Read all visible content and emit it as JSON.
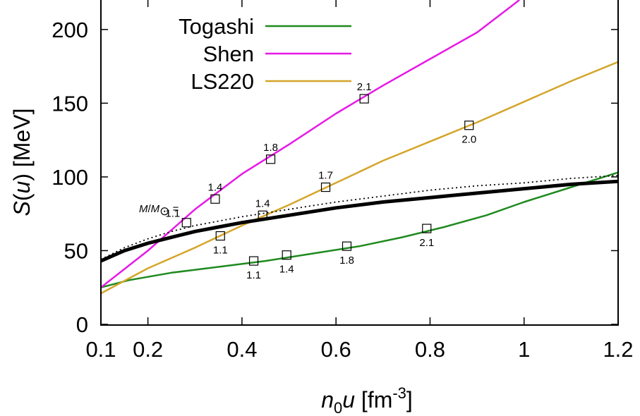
{
  "chart_data": {
    "type": "line",
    "xlabel": "n0u [fm-3]",
    "ylabel": "S(u) [MeV]",
    "xlim": [
      0.1,
      1.2
    ],
    "ylim": [
      0,
      220
    ],
    "x_ticks": [
      {
        "value": 0.1,
        "label": "0.1"
      },
      {
        "value": 0.2,
        "label": "0.2"
      },
      {
        "value": 0.4,
        "label": "0.4"
      },
      {
        "value": 0.6,
        "label": "0.6"
      },
      {
        "value": 0.8,
        "label": "0.8"
      },
      {
        "value": 1.0,
        "label": "1"
      },
      {
        "value": 1.2,
        "label": "1.2"
      }
    ],
    "y_ticks": [
      {
        "value": 0,
        "label": "0"
      },
      {
        "value": 50,
        "label": "50"
      },
      {
        "value": 100,
        "label": "100"
      },
      {
        "value": 150,
        "label": "150"
      },
      {
        "value": 200,
        "label": "200"
      }
    ],
    "legend_position": "top-left",
    "series": [
      {
        "name": "Togashi",
        "color": "#1f8a1f",
        "x": [
          0.1,
          0.16,
          0.25,
          0.35,
          0.45,
          0.55,
          0.65,
          0.74,
          0.83,
          0.92,
          1.0,
          1.1,
          1.2
        ],
        "y": [
          25,
          30,
          35,
          39,
          43,
          48,
          53,
          59,
          66,
          74,
          83,
          93,
          103
        ]
      },
      {
        "name": "Shen",
        "color": "#e619e6",
        "x": [
          0.1,
          0.2,
          0.3,
          0.4,
          0.5,
          0.6,
          0.7,
          0.8,
          0.9,
          0.99
        ],
        "y": [
          25,
          50,
          78,
          102,
          122,
          143,
          162,
          180,
          198,
          220
        ]
      },
      {
        "name": "LS220",
        "color": "#d4a52a",
        "x": [
          0.1,
          0.2,
          0.3,
          0.4,
          0.5,
          0.6,
          0.7,
          0.8,
          0.9,
          1.0,
          1.1,
          1.2
        ],
        "y": [
          21,
          38,
          52,
          67,
          81,
          96,
          111,
          124,
          137,
          151,
          165,
          178
        ]
      },
      {
        "name": "",
        "color": "#000000",
        "style": "solid-thick",
        "x": [
          0.1,
          0.15,
          0.2,
          0.25,
          0.3,
          0.35,
          0.4,
          0.5,
          0.6,
          0.7,
          0.8,
          0.9,
          1.0,
          1.1,
          1.2
        ],
        "y": [
          43,
          50,
          55,
          59,
          63,
          66,
          69,
          74,
          79,
          83,
          86,
          89,
          92,
          95,
          97
        ]
      },
      {
        "name": "",
        "color": "#000000",
        "style": "dotted",
        "x": [
          0.1,
          0.15,
          0.2,
          0.25,
          0.3,
          0.35,
          0.4,
          0.5,
          0.6,
          0.7,
          0.8,
          0.9,
          1.0,
          1.1,
          1.2
        ],
        "y": [
          44,
          52,
          58,
          63,
          67,
          70,
          73,
          78,
          83,
          87,
          91,
          94,
          96,
          99,
          101
        ]
      }
    ],
    "mass_markers": [
      {
        "series": "Togashi",
        "x": 0.425,
        "y": 43,
        "label": "1.1",
        "label_pos": "below"
      },
      {
        "series": "Togashi",
        "x": 0.495,
        "y": 47,
        "label": "1.4",
        "label_pos": "below"
      },
      {
        "series": "Togashi",
        "x": 0.623,
        "y": 53,
        "label": "1.8",
        "label_pos": "below"
      },
      {
        "series": "Togashi",
        "x": 0.793,
        "y": 65,
        "label": "2.1",
        "label_pos": "below"
      },
      {
        "series": "Shen",
        "x": 0.282,
        "y": 69,
        "label": "1.1",
        "label_pos": "left"
      },
      {
        "series": "Shen",
        "x": 0.343,
        "y": 85,
        "label": "1.4",
        "label_pos": "above"
      },
      {
        "series": "Shen",
        "x": 0.461,
        "y": 112,
        "label": "1.8",
        "label_pos": "above"
      },
      {
        "series": "Shen",
        "x": 0.66,
        "y": 153,
        "label": "2.1",
        "label_pos": "above"
      },
      {
        "series": "LS220",
        "x": 0.354,
        "y": 60,
        "label": "1.1",
        "label_pos": "below"
      },
      {
        "series": "LS220",
        "x": 0.444,
        "y": 74,
        "label": "1.4",
        "label_pos": "above"
      },
      {
        "series": "LS220",
        "x": 0.578,
        "y": 93,
        "label": "1.7",
        "label_pos": "above"
      },
      {
        "series": "LS220",
        "x": 0.883,
        "y": 135,
        "label": "2.0",
        "label_pos": "below"
      }
    ],
    "mass_annotation": "M/M⊙ ="
  }
}
